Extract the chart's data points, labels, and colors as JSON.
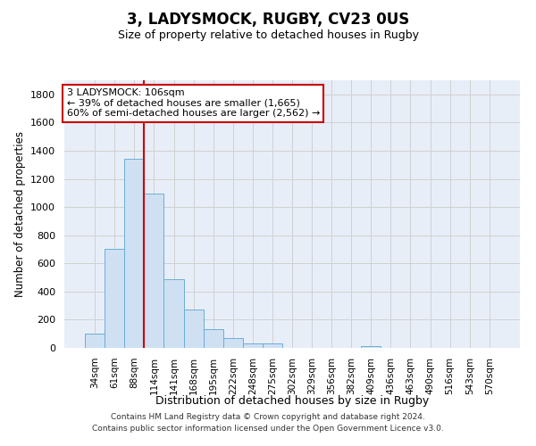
{
  "title": "3, LADYSMOCK, RUGBY, CV23 0US",
  "subtitle": "Size of property relative to detached houses in Rugby",
  "xlabel": "Distribution of detached houses by size in Rugby",
  "ylabel": "Number of detached properties",
  "footer_line1": "Contains HM Land Registry data © Crown copyright and database right 2024.",
  "footer_line2": "Contains public sector information licensed under the Open Government Licence v3.0.",
  "categories": [
    "34sqm",
    "61sqm",
    "88sqm",
    "114sqm",
    "141sqm",
    "168sqm",
    "195sqm",
    "222sqm",
    "248sqm",
    "275sqm",
    "302sqm",
    "329sqm",
    "356sqm",
    "382sqm",
    "409sqm",
    "436sqm",
    "463sqm",
    "490sqm",
    "516sqm",
    "543sqm",
    "570sqm"
  ],
  "values": [
    100,
    700,
    1340,
    1095,
    490,
    270,
    135,
    68,
    32,
    32,
    0,
    0,
    0,
    0,
    15,
    0,
    0,
    0,
    0,
    0,
    0
  ],
  "bar_color": "#cfe0f3",
  "bar_edge_color": "#6baed6",
  "grid_color": "#d0d0d0",
  "vline_x_index": 2,
  "vline_color": "#cc0000",
  "annotation_text": "3 LADYSMOCK: 106sqm\n← 39% of detached houses are smaller (1,665)\n60% of semi-detached houses are larger (2,562) →",
  "annotation_box_color": "#ffffff",
  "annotation_box_edge_color": "#cc0000",
  "ylim": [
    0,
    1900
  ],
  "yticks": [
    0,
    200,
    400,
    600,
    800,
    1000,
    1200,
    1400,
    1600,
    1800
  ],
  "background_color": "#e8eef8"
}
